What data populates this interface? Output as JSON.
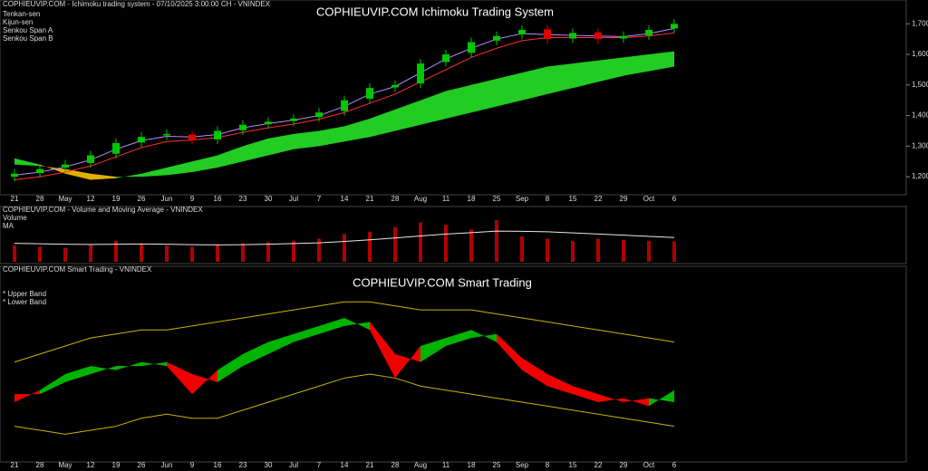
{
  "chart_data": [
    {
      "type": "candlestick",
      "title": "COPHIEUVIP.COM Ichimoku Trading System",
      "subtitle": "COPHIEUVIP.COM - Ichimoku trading system - 07/10/2025 3:00:00 CH - VNINDEX",
      "categories": [
        "21",
        "28",
        "May",
        "12",
        "19",
        "26",
        "Jun",
        "9",
        "16",
        "23",
        "30",
        "Jul",
        "7",
        "14",
        "21",
        "28",
        "Aug",
        "11",
        "18",
        "25",
        "Sep",
        "8",
        "15",
        "22",
        "29",
        "Oct",
        "6"
      ],
      "open": [
        1200,
        1212,
        1230,
        1245,
        1275,
        1312,
        1335,
        1338,
        1322,
        1352,
        1372,
        1382,
        1395,
        1415,
        1455,
        1492,
        1505,
        1575,
        1605,
        1645,
        1665,
        1682,
        1652,
        1672,
        1652,
        1662,
        1685
      ],
      "high": [
        1225,
        1240,
        1255,
        1285,
        1325,
        1345,
        1355,
        1350,
        1365,
        1385,
        1395,
        1405,
        1425,
        1465,
        1505,
        1515,
        1585,
        1615,
        1655,
        1675,
        1695,
        1695,
        1685,
        1685,
        1675,
        1695,
        1715
      ],
      "low": [
        1185,
        1197,
        1215,
        1230,
        1260,
        1297,
        1320,
        1305,
        1307,
        1337,
        1357,
        1367,
        1380,
        1400,
        1440,
        1477,
        1490,
        1560,
        1590,
        1630,
        1650,
        1635,
        1637,
        1635,
        1637,
        1647,
        1670
      ],
      "close": [
        1210,
        1225,
        1240,
        1270,
        1310,
        1330,
        1340,
        1320,
        1350,
        1370,
        1380,
        1390,
        1410,
        1450,
        1490,
        1500,
        1570,
        1600,
        1640,
        1660,
        1680,
        1650,
        1670,
        1650,
        1660,
        1680,
        1700
      ],
      "up_color": "#00c800",
      "down_color": "#e00000",
      "series": [
        {
          "name": "Tenkan-sen",
          "color": "#b48cff",
          "values": [
            1205,
            1215,
            1232,
            1255,
            1290,
            1318,
            1332,
            1330,
            1338,
            1360,
            1374,
            1385,
            1400,
            1430,
            1470,
            1495,
            1540,
            1585,
            1620,
            1650,
            1668,
            1665,
            1662,
            1660,
            1658,
            1668,
            1685
          ]
        },
        {
          "name": "Kijun-sen",
          "color": "#ff3030",
          "values": [
            1190,
            1200,
            1215,
            1235,
            1265,
            1295,
            1315,
            1320,
            1328,
            1345,
            1360,
            1372,
            1388,
            1410,
            1440,
            1470,
            1510,
            1550,
            1590,
            1620,
            1645,
            1655,
            1655,
            1655,
            1655,
            1660,
            1670
          ]
        },
        {
          "name": "Senkou Span A",
          "color": "#00d000",
          "values": [
            1260,
            1240,
            1210,
            1190,
            1195,
            1210,
            1230,
            1250,
            1270,
            1300,
            1325,
            1340,
            1350,
            1365,
            1390,
            1420,
            1450,
            1480,
            1500,
            1520,
            1540,
            1560,
            1570,
            1580,
            1590,
            1600,
            1610
          ]
        },
        {
          "name": "Senkou Span B",
          "color": "#d0a000",
          "values": [
            1240,
            1235,
            1225,
            1210,
            1200,
            1200,
            1205,
            1215,
            1230,
            1250,
            1270,
            1290,
            1300,
            1315,
            1330,
            1350,
            1370,
            1390,
            1410,
            1430,
            1450,
            1470,
            1490,
            1510,
            1530,
            1545,
            1560
          ]
        }
      ],
      "ylim": [
        1150,
        1760
      ],
      "yticks": [
        {
          "value": 1200,
          "label": "1,200"
        },
        {
          "value": 1300,
          "label": "1,300"
        },
        {
          "value": 1400,
          "label": "1,400"
        },
        {
          "value": 1500,
          "label": "1,500"
        },
        {
          "value": 1600,
          "label": "1,600"
        },
        {
          "value": 1700,
          "label": "1,700"
        }
      ]
    },
    {
      "type": "bar",
      "subtitle": "COPHIEUVIP.COM - Volume and Moving Average - VNINDEX",
      "categories": [
        "21",
        "28",
        "May",
        "12",
        "19",
        "26",
        "Jun",
        "9",
        "16",
        "23",
        "30",
        "Jul",
        "7",
        "14",
        "21",
        "28",
        "Aug",
        "11",
        "18",
        "25",
        "Sep",
        "8",
        "15",
        "22",
        "29",
        "Oct",
        "6"
      ],
      "series": [
        {
          "name": "Volume",
          "color": "#b00000",
          "values": [
            700,
            650,
            600,
            750,
            900,
            800,
            700,
            650,
            720,
            800,
            850,
            900,
            1000,
            1200,
            1300,
            1500,
            1700,
            1600,
            1400,
            1800,
            1100,
            1000,
            900,
            1000,
            950,
            900,
            877
          ]
        },
        {
          "name": "MA",
          "color": "#e8e8e8",
          "values": [
            800,
            780,
            760,
            750,
            760,
            770,
            760,
            740,
            730,
            740,
            760,
            790,
            820,
            880,
            950,
            1030,
            1120,
            1200,
            1260,
            1330,
            1320,
            1300,
            1250,
            1200,
            1150,
            1100,
            1050
          ]
        }
      ],
      "ylim": [
        0,
        2000
      ]
    },
    {
      "type": "band",
      "title": "COPHIEUVIP.COM Smart Trading",
      "subtitle": "COPHIEUVIP.COM Smart Trading - VNINDEX",
      "categories": [
        "21",
        "28",
        "May",
        "12",
        "19",
        "26",
        "Jun",
        "9",
        "16",
        "23",
        "30",
        "Jul",
        "7",
        "14",
        "21",
        "28",
        "Aug",
        "11",
        "18",
        "25",
        "Sep",
        "8",
        "15",
        "22",
        "29",
        "Oct",
        "6"
      ],
      "up_color": "#00b400",
      "down_color": "#f00000",
      "series": [
        {
          "color": "#00a000",
          "values": [
            -6,
            -3,
            1,
            3,
            2,
            4,
            3,
            -4,
            2,
            6,
            9,
            11,
            13,
            15,
            12,
            0,
            8,
            10,
            12,
            9,
            2,
            -2,
            -4,
            -6,
            -5,
            -7,
            -3
          ]
        },
        {
          "color": "#c00000",
          "values": [
            -4,
            -4,
            -1,
            1,
            3,
            3,
            4,
            1,
            -1,
            3,
            6,
            9,
            11,
            13,
            14,
            6,
            4,
            8,
            10,
            11,
            5,
            1,
            -2,
            -4,
            -6,
            -5,
            -6
          ]
        },
        {
          "name": "* Upper Band",
          "color": "#c8b400",
          "values": [
            4,
            6,
            8,
            10,
            11,
            12,
            12,
            13,
            14,
            15,
            16,
            17,
            18,
            19,
            19,
            18,
            17,
            17,
            17,
            16,
            15,
            14,
            13,
            12,
            11,
            10,
            9
          ]
        },
        {
          "name": "* Lower Band",
          "color": "#c8b400",
          "values": [
            -12,
            -13,
            -14,
            -13,
            -12,
            -10,
            -9,
            -10,
            -10,
            -8,
            -6,
            -4,
            -2,
            0,
            1,
            0,
            -2,
            -3,
            -4,
            -5,
            -6,
            -7,
            -8,
            -9,
            -10,
            -11,
            -12
          ]
        }
      ],
      "ylim": [
        -20,
        22
      ]
    }
  ]
}
